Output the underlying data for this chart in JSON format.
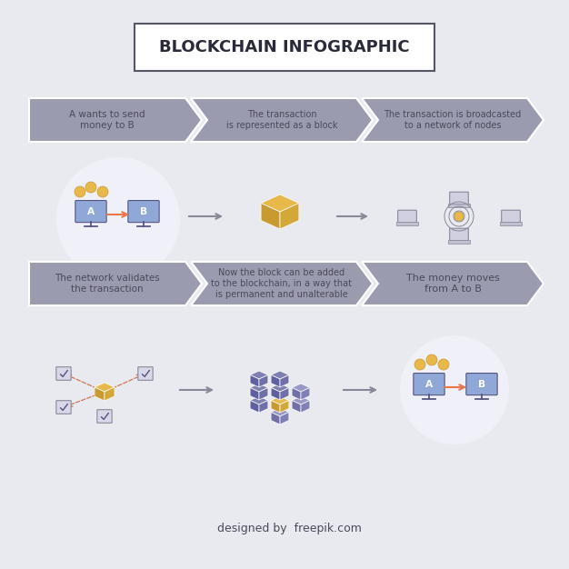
{
  "title": "BLOCKCHAIN INFOGRAPHIC",
  "bg_color": "#e8eaf0",
  "arrow_color": "#9b9bb0",
  "arrow_text_color": "#4a4a5a",
  "row1_labels": [
    "A wants to send\nmoney to B",
    "The transaction\nis represented as a block",
    "The transaction is broadcasted\nto a network of nodes"
  ],
  "row2_labels": [
    "The network validates\nthe transaction",
    "Now the block can be added\nto the blockchain, in a way that\nis permanent and unalterable",
    "The money moves\nfrom A to B"
  ],
  "gold_color": "#e8b84b",
  "gold_dark": "#c99a30",
  "gold_mid": "#d4a838",
  "purple_color": "#8080b0",
  "purple_light": "#9898c8",
  "purple_dark": "#6060a0",
  "purple_mid": "#7070a8",
  "monitor_color": "#7b8bc4",
  "monitor_screen": "#8fa8d8",
  "footer_text": "designed by  freepik.com",
  "title_box_color": "#ffffff",
  "title_box_edge": "#555566",
  "white_circle_color": "#f0f0f8",
  "arrow_stem_color": "#888899",
  "orange_arrow": "#e8784b",
  "pink_arrow": "#cc7755"
}
